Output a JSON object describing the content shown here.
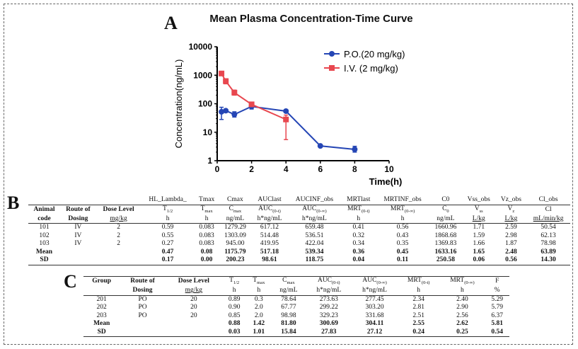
{
  "panels": {
    "a": "A",
    "b": "B",
    "c": "C"
  },
  "chart_data": {
    "type": "line",
    "title": "Mean Plasma Concentration-Time Curve",
    "xlabel": "Time(h)",
    "ylabel": "Concentration(ng/mL)",
    "xlim": [
      0,
      10
    ],
    "ylim": [
      1,
      10000
    ],
    "yscale": "log",
    "xticks": [
      "0",
      "2",
      "4",
      "6",
      "8",
      "10"
    ],
    "yticks": [
      "1",
      "10",
      "100",
      "1000",
      "10000"
    ],
    "legend_position": "top-right",
    "grid": false,
    "series": [
      {
        "name": "P.O.(20 mg/kg)",
        "color": "#2546b5",
        "marker": "circle",
        "x": [
          0.25,
          0.5,
          1,
          2,
          4,
          6,
          8
        ],
        "y": [
          52,
          57,
          42,
          80,
          55,
          3.3,
          2.5
        ],
        "err_low": [
          28,
          50,
          34,
          65,
          50,
          3.1,
          2.0
        ],
        "err_high": [
          75,
          62,
          52,
          95,
          60,
          3.5,
          3.2
        ]
      },
      {
        "name": "I.V. (2 mg/kg)",
        "color": "#e8474f",
        "marker": "square",
        "x": [
          0.25,
          0.5,
          1,
          2,
          4
        ],
        "y": [
          1150,
          620,
          245,
          95,
          28
        ],
        "err_low": [
          1000,
          500,
          200,
          85,
          5.5
        ],
        "err_high": [
          1250,
          750,
          300,
          105,
          40
        ]
      }
    ]
  },
  "table_b": {
    "top_header": [
      "",
      "",
      "",
      "HL_Lambda_",
      "Tmax",
      "Cmax",
      "AUClast",
      "AUCINF_obs",
      "MRTlast",
      "MRTINF_obs",
      "C0",
      "Vss_obs",
      "Vz_obs",
      "Cl_obs"
    ],
    "header1": [
      {
        "t": "Animal"
      },
      {
        "t": "Route of"
      },
      {
        "t": "Dose Level"
      },
      {
        "t": "T",
        "s": "1/2"
      },
      {
        "t": "T",
        "s": "max"
      },
      {
        "t": "C",
        "s": "max"
      },
      {
        "t": "AUC",
        "s": "(0-t)"
      },
      {
        "t": "AUC",
        "s": "(0-∞)"
      },
      {
        "t": "MRT",
        "s": "(0-t)"
      },
      {
        "t": "MRT",
        "s": "(0-∞)"
      },
      {
        "t": "C",
        "s": "0"
      },
      {
        "t": "V",
        "s": "ss"
      },
      {
        "t": "V",
        "s": "z"
      },
      {
        "t": "Cl"
      }
    ],
    "header2": [
      "code",
      "Dosing",
      "mg/kg",
      "h",
      "h",
      "ng/mL",
      "h*ng/mL",
      "h*ng/mL",
      "h",
      "h",
      "ng/mL",
      "L/kg",
      "L/kg",
      "mL/min/kg"
    ],
    "rows": [
      [
        "101",
        "IV",
        "2",
        "0.59",
        "0.083",
        "1279.29",
        "617.12",
        "659.48",
        "0.41",
        "0.56",
        "1660.96",
        "1.71",
        "2.59",
        "50.54"
      ],
      [
        "102",
        "IV",
        "2",
        "0.55",
        "0.083",
        "1303.09",
        "514.48",
        "536.51",
        "0.32",
        "0.43",
        "1868.68",
        "1.59",
        "2.98",
        "62.13"
      ],
      [
        "103",
        "IV",
        "2",
        "0.27",
        "0.083",
        "945.00",
        "419.95",
        "422.04",
        "0.34",
        "0.35",
        "1369.83",
        "1.66",
        "1.87",
        "78.98"
      ]
    ],
    "summary": [
      [
        "Mean",
        "",
        "",
        "0.47",
        "0.08",
        "1175.79",
        "517.18",
        "539.34",
        "0.36",
        "0.45",
        "1633.16",
        "1.65",
        "2.48",
        "63.89"
      ],
      [
        "SD",
        "",
        "",
        "0.17",
        "0.00",
        "200.23",
        "98.61",
        "118.75",
        "0.04",
        "0.11",
        "250.58",
        "0.06",
        "0.56",
        "14.30"
      ]
    ]
  },
  "table_c": {
    "header1": [
      {
        "t": "Group"
      },
      {
        "t": "Route of"
      },
      {
        "t": "Dose Level"
      },
      {
        "t": "T",
        "s": "1/2"
      },
      {
        "t": "T",
        "s": "max"
      },
      {
        "t": "C",
        "s": "max"
      },
      {
        "t": "AUC",
        "s": "(0-t)"
      },
      {
        "t": "AUC",
        "s": "(0-∞)"
      },
      {
        "t": "MRT",
        "s": "(0-t)"
      },
      {
        "t": "MRT",
        "s": "(0-∞)"
      },
      {
        "t": "F"
      }
    ],
    "header2": [
      "",
      "Dosing",
      "mg/kg",
      "h",
      "h",
      "ng/mL",
      "h*ng/mL",
      "h*ng/mL",
      "h",
      "h",
      "%"
    ],
    "rows": [
      [
        "201",
        "PO",
        "20",
        "0.89",
        "0.3",
        "78.64",
        "273.63",
        "277.45",
        "2.34",
        "2.40",
        "5.29"
      ],
      [
        "202",
        "PO",
        "20",
        "0.90",
        "2.0",
        "67.77",
        "299.22",
        "303.20",
        "2.81",
        "2.90",
        "5.79"
      ],
      [
        "203",
        "PO",
        "20",
        "0.85",
        "2.0",
        "98.98",
        "329.23",
        "331.68",
        "2.51",
        "2.56",
        "6.37"
      ]
    ],
    "summary": [
      [
        "Mean",
        "",
        "",
        "0.88",
        "1.42",
        "81.80",
        "300.69",
        "304.11",
        "2.55",
        "2.62",
        "5.81"
      ],
      [
        "SD",
        "",
        "",
        "0.03",
        "1.01",
        "15.84",
        "27.83",
        "27.12",
        "0.24",
        "0.25",
        "0.54"
      ]
    ]
  }
}
